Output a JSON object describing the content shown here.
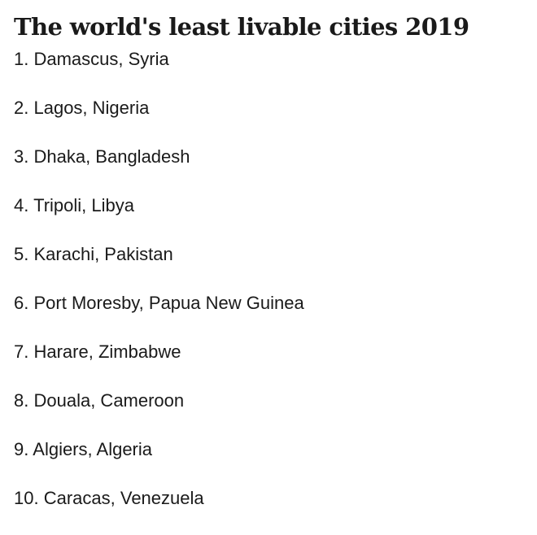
{
  "title": "The world's least livable cities 2019",
  "cities": [
    {
      "rank": "1.",
      "name": "Damascus, Syria"
    },
    {
      "rank": "2.",
      "name": "Lagos, Nigeria"
    },
    {
      "rank": "3.",
      "name": "Dhaka, Bangladesh"
    },
    {
      "rank": "4.",
      "name": "Tripoli, Libya"
    },
    {
      "rank": "5.",
      "name": "Karachi, Pakistan"
    },
    {
      "rank": "6.",
      "name": "Port Moresby, Papua New Guinea"
    },
    {
      "rank": "7.",
      "name": "Harare, Zimbabwe"
    },
    {
      "rank": "8.",
      "name": "Douala, Cameroon"
    },
    {
      "rank": "9.",
      "name": "Algiers, Algeria"
    },
    {
      "rank": "10.",
      "name": "Caracas, Venezuela"
    }
  ]
}
